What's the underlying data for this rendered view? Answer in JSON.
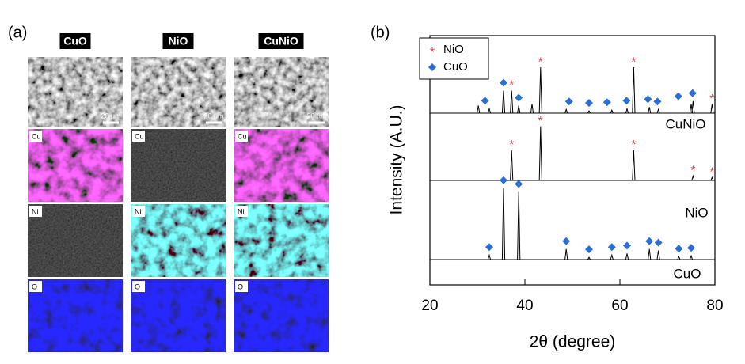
{
  "panel_a": {
    "label": "(a)",
    "columns": [
      {
        "title": "CuO",
        "scale": "20 μm",
        "maps": [
          "Cu",
          "Ni",
          "O"
        ]
      },
      {
        "title": "NiO",
        "scale": "20 μm",
        "maps": [
          "Cu",
          "Ni",
          "O"
        ]
      },
      {
        "title": "CuNiO",
        "scale": "20 μm",
        "maps": [
          "Cu",
          "Ni",
          "O"
        ]
      }
    ]
  },
  "chart_data": {
    "type": "xrd",
    "label": "(b)",
    "xlabel": "2θ (degree)",
    "ylabel": "Intensity (A.U.)",
    "xlim": [
      20,
      80
    ],
    "xticks": [
      20,
      40,
      60,
      80
    ],
    "legend": [
      {
        "name": "NiO",
        "color": "#e04848",
        "symbol": "asterisk"
      },
      {
        "name": "CuO",
        "color": "#2a6fd6",
        "symbol": "diamond"
      }
    ],
    "patterns": [
      {
        "name": "CuNiO",
        "peaks_x": [
          30.2,
          32.5,
          35.5,
          37.2,
          38.7,
          41.5,
          43.3,
          48.7,
          53.5,
          58.3,
          61.5,
          62.9,
          66.2,
          68.1,
          75.0,
          75.4,
          79.4
        ],
        "peaks_height": [
          10,
          6,
          30,
          30,
          10,
          12,
          61,
          5,
          3,
          4,
          6,
          61,
          8,
          5,
          12,
          16,
          12
        ],
        "marks": [
          [
            37.2,
            43.3,
            62.9,
            75.4,
            79.4
          ],
          [
            31.6,
            35.5,
            38.7,
            49.3,
            53.5,
            57.3,
            61.4,
            65.9,
            67.9,
            72.3,
            75.3
          ]
        ]
      },
      {
        "name": "NiO",
        "peaks_x": [
          37.2,
          43.3,
          62.9,
          75.4,
          79.4
        ],
        "peaks_height": [
          40,
          72,
          40,
          6,
          4
        ],
        "marks": [
          [
            37.2,
            43.3,
            62.9,
            75.4,
            79.4
          ],
          []
        ]
      },
      {
        "name": "CuO",
        "peaks_x": [
          32.5,
          35.5,
          38.7,
          48.7,
          53.5,
          58.3,
          61.5,
          66.2,
          68.1,
          72.4,
          75.0
        ],
        "peaks_height": [
          6,
          95,
          90,
          14,
          3,
          6,
          8,
          14,
          12,
          4,
          5
        ],
        "marks": [
          [],
          [
            32.5,
            35.5,
            38.7,
            48.7,
            53.5,
            58.3,
            61.5,
            66.2,
            68.1,
            72.4,
            75.0
          ]
        ]
      }
    ]
  }
}
